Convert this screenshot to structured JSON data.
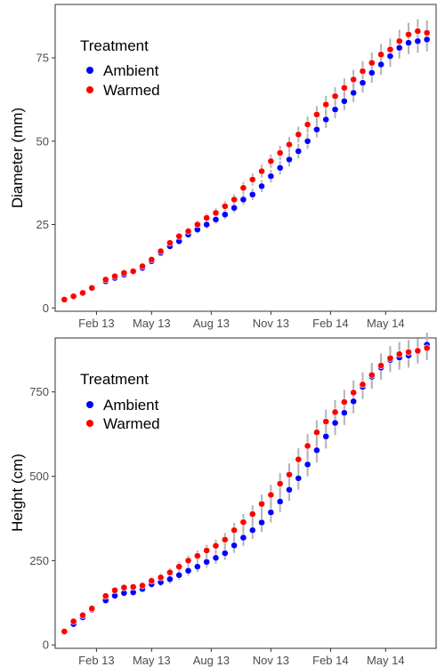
{
  "colors": {
    "ambient": "#0000ff",
    "warmed": "#ff0000",
    "error_bar": "#b3b3b3",
    "axis": "#333333"
  },
  "legend": {
    "title": "Treatment",
    "entries": [
      {
        "label": "Ambient",
        "color": "#0000ff"
      },
      {
        "label": "Warmed",
        "color": "#ff0000"
      }
    ],
    "placement": "top-left"
  },
  "chart_data": [
    {
      "type": "scatter",
      "ylabel": "Diameter (mm)",
      "xlabel": "",
      "x_ticks": [
        "Feb 13",
        "May 13",
        "Aug 13",
        "Nov 13",
        "Feb 14",
        "May 14"
      ],
      "y_ticks": [
        0,
        25,
        50,
        75
      ],
      "ylim": [
        -1,
        91
      ],
      "grid": false,
      "error_bars": true,
      "x": [
        0,
        1,
        2,
        3,
        4.5,
        5.5,
        6.5,
        7.5,
        8.5,
        9.5,
        10.5,
        11.5,
        12.5,
        13.5,
        14.5,
        15.5,
        16.5,
        17.5,
        18.5,
        19.5,
        20.5,
        21.5,
        22.5,
        23.5,
        24.5,
        25.5,
        26.5,
        27.5,
        28.5,
        29.5,
        30.5,
        31.5,
        32.5,
        33.5,
        34.5,
        35.5,
        36.5,
        37.5,
        38.5,
        39.5
      ],
      "series": [
        {
          "name": "Ambient",
          "values": [
            2.5,
            3.5,
            4.5,
            6,
            8,
            9,
            10,
            11,
            12,
            14,
            16.5,
            18.5,
            20,
            22,
            23.5,
            25,
            26.5,
            28,
            30,
            32.5,
            34,
            36.5,
            39.5,
            42,
            44.5,
            47,
            50,
            53.5,
            56.5,
            59.5,
            62,
            64.5,
            67.5,
            70.5,
            73,
            75.5,
            78,
            79.5,
            80,
            80.5
          ],
          "err": [
            0.3,
            0.3,
            0.3,
            0.3,
            0.4,
            0.4,
            0.5,
            0.5,
            0.6,
            0.7,
            0.8,
            0.9,
            1,
            1,
            1.1,
            1.2,
            1.3,
            1.4,
            1.5,
            1.6,
            1.7,
            1.8,
            1.9,
            2,
            2.1,
            2.2,
            2.3,
            2.4,
            2.5,
            2.6,
            2.7,
            2.8,
            2.9,
            3,
            3.1,
            3.2,
            3.3,
            3.4,
            3.5,
            3.6
          ]
        },
        {
          "name": "Warmed",
          "values": [
            2.5,
            3.5,
            4.5,
            6,
            8.5,
            9.5,
            10.5,
            11,
            12.5,
            14.5,
            17,
            19.5,
            21.5,
            23,
            25,
            27,
            28.5,
            30.5,
            32.5,
            36,
            38.5,
            41,
            44,
            46.5,
            49,
            52,
            55,
            58,
            61,
            63.5,
            66,
            68.5,
            71,
            73.5,
            76,
            77.5,
            80,
            82,
            83,
            82.5
          ],
          "err": [
            0.3,
            0.3,
            0.3,
            0.3,
            0.4,
            0.4,
            0.5,
            0.5,
            0.6,
            0.7,
            0.8,
            0.9,
            1,
            1.1,
            1.2,
            1.3,
            1.4,
            1.5,
            1.6,
            1.7,
            1.8,
            1.9,
            2,
            2.1,
            2.2,
            2.3,
            2.4,
            2.5,
            2.6,
            2.7,
            2.8,
            2.9,
            3,
            3.1,
            3.2,
            3.3,
            3.4,
            3.5,
            3.6,
            3.7
          ]
        }
      ]
    },
    {
      "type": "scatter",
      "ylabel": "Height (cm)",
      "xlabel": "",
      "x_ticks": [
        "Feb 13",
        "May 13",
        "Aug 13",
        "Nov 13",
        "Feb 14",
        "May 14"
      ],
      "y_ticks": [
        0,
        250,
        500,
        750
      ],
      "ylim": [
        -10,
        910
      ],
      "grid": false,
      "error_bars": true,
      "x": [
        0,
        1,
        2,
        3,
        4.5,
        5.5,
        6.5,
        7.5,
        8.5,
        9.5,
        10.5,
        11.5,
        12.5,
        13.5,
        14.5,
        15.5,
        16.5,
        17.5,
        18.5,
        19.5,
        20.5,
        21.5,
        22.5,
        23.5,
        24.5,
        25.5,
        26.5,
        27.5,
        28.5,
        29.5,
        30.5,
        31.5,
        32.5,
        33.5,
        34.5,
        35.5,
        36.5,
        37.5,
        38.5,
        39.5
      ],
      "series": [
        {
          "name": "Ambient",
          "values": [
            40,
            62,
            82,
            105,
            132,
            146,
            154,
            156,
            166,
            180,
            186,
            195,
            207,
            220,
            232,
            246,
            258,
            272,
            295,
            318,
            340,
            363,
            393,
            425,
            460,
            494,
            535,
            577,
            618,
            658,
            688,
            722,
            765,
            795,
            822,
            845,
            852,
            858,
            870,
            890
          ],
          "err": [
            4,
            5,
            6,
            7,
            8,
            8,
            9,
            9,
            10,
            11,
            12,
            13,
            14,
            15,
            16,
            17,
            18,
            20,
            22,
            24,
            26,
            28,
            30,
            32,
            33,
            34,
            35,
            36,
            36,
            36,
            36,
            36,
            36,
            36,
            36,
            36,
            36,
            36,
            36,
            36
          ]
        },
        {
          "name": "Warmed",
          "values": [
            40,
            70,
            88,
            108,
            145,
            162,
            170,
            172,
            176,
            190,
            200,
            215,
            232,
            250,
            264,
            280,
            294,
            312,
            340,
            364,
            388,
            418,
            445,
            478,
            505,
            550,
            590,
            630,
            662,
            690,
            720,
            748,
            772,
            800,
            828,
            850,
            862,
            868,
            872,
            880
          ],
          "err": [
            4,
            5,
            6,
            7,
            8,
            8,
            9,
            9,
            10,
            11,
            12,
            13,
            14,
            15,
            16,
            17,
            18,
            20,
            22,
            24,
            26,
            28,
            30,
            32,
            33,
            34,
            35,
            36,
            36,
            36,
            36,
            36,
            36,
            36,
            36,
            36,
            36,
            36,
            36,
            36
          ]
        }
      ]
    }
  ]
}
